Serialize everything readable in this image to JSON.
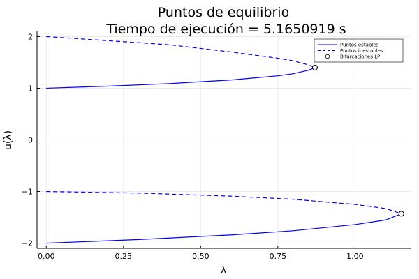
{
  "chart_data": {
    "type": "line",
    "title": "Puntos de equilibrio",
    "subtitle": "Tiempo de ejecución = 5.1650919 s",
    "xlabel": "λ",
    "ylabel": "u(λ)",
    "xlim": [
      -0.03,
      1.18
    ],
    "ylim": [
      -2.1,
      2.1
    ],
    "x_ticks": [
      0.0,
      0.25,
      0.5,
      0.75,
      1.0
    ],
    "x_tick_labels": [
      "0.00",
      "0.25",
      "0.50",
      "0.75",
      "1.00"
    ],
    "y_ticks": [
      -2,
      -1,
      0,
      1,
      2
    ],
    "y_tick_labels": [
      "−2",
      "−1",
      "0",
      "1",
      "2"
    ],
    "grid": true,
    "legend_position": "top-right",
    "colors": {
      "line": "#0000ee",
      "marker_edge": "#000000",
      "marker_fill": "#ffffff",
      "axis": "#000000",
      "grid": "#ebebeb"
    },
    "series": [
      {
        "name": "Puntos estables",
        "style": "solid",
        "segments": [
          {
            "x": [
              0.0,
              0.2,
              0.4,
              0.6,
              0.75,
              0.8,
              0.85,
              0.87
            ],
            "y": [
              1.0,
              1.04,
              1.09,
              1.16,
              1.24,
              1.28,
              1.35,
              1.4
            ]
          },
          {
            "x": [
              0.0,
              0.3,
              0.6,
              0.8,
              1.0,
              1.1,
              1.15
            ],
            "y": [
              -2.0,
              -1.93,
              -1.84,
              -1.76,
              -1.64,
              -1.55,
              -1.43
            ]
          }
        ]
      },
      {
        "name": "Puntos inestables",
        "style": "dashed",
        "segments": [
          {
            "x": [
              0.0,
              0.2,
              0.4,
              0.6,
              0.75,
              0.8,
              0.85,
              0.87
            ],
            "y": [
              2.0,
              1.92,
              1.84,
              1.7,
              1.58,
              1.53,
              1.45,
              1.4
            ]
          },
          {
            "x": [
              0.0,
              0.3,
              0.6,
              0.8,
              1.0,
              1.1,
              1.15
            ],
            "y": [
              -1.0,
              -1.03,
              -1.09,
              -1.15,
              -1.25,
              -1.33,
              -1.43
            ]
          }
        ]
      },
      {
        "name": "Bifurcaciones LP",
        "style": "marker",
        "points": [
          {
            "x": 0.87,
            "y": 1.4
          },
          {
            "x": 1.15,
            "y": -1.43
          }
        ]
      }
    ]
  }
}
